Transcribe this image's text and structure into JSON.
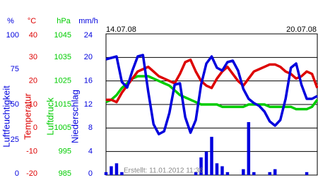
{
  "chart_data": {
    "type": "line",
    "date_start": "14.07.08",
    "date_end": "20.07.08",
    "footer": "Erstellt: 11.01.2012 11:36",
    "grid": true,
    "series": [
      {
        "name": "Luftfeuchtigkeit",
        "unit": "%",
        "type": "line",
        "color": "#0000dd",
        "ylim": [
          0,
          100
        ],
        "yticks": [
          0,
          25,
          50,
          75,
          100
        ],
        "values": [
          82,
          83,
          84,
          66,
          62,
          74,
          84,
          85,
          59,
          36,
          29,
          31,
          44,
          64,
          65,
          41,
          30,
          39,
          64,
          79,
          84,
          76,
          74,
          80,
          81,
          74,
          61,
          54,
          51,
          49,
          45,
          38,
          35,
          39,
          54,
          76,
          79,
          64,
          54,
          54,
          56
        ]
      },
      {
        "name": "Temperatur",
        "unit": "°C",
        "type": "line",
        "color": "#dd0000",
        "ylim": [
          -20,
          40
        ],
        "yticks": [
          -20,
          -10,
          0,
          10,
          20,
          30,
          40
        ],
        "values": [
          12,
          12,
          11,
          15,
          18,
          21,
          24,
          25,
          26,
          24,
          22,
          21,
          20,
          19,
          23,
          28,
          29,
          24,
          20,
          18,
          17,
          21,
          24,
          26,
          23,
          20,
          18,
          21,
          24,
          25,
          26,
          27,
          27,
          26,
          24,
          23,
          21,
          22,
          24,
          23,
          17
        ]
      },
      {
        "name": "Luftdruck",
        "unit": "hPa",
        "type": "line",
        "color": "#00cc00",
        "ylim": [
          985,
          1045
        ],
        "yticks": [
          985,
          995,
          1005,
          1015,
          1025,
          1035,
          1045
        ],
        "values": [
          1016,
          1017,
          1019,
          1022,
          1024,
          1026,
          1027,
          1027,
          1027,
          1026,
          1025,
          1024,
          1023,
          1021,
          1019,
          1018,
          1017,
          1016,
          1015,
          1015,
          1015,
          1015,
          1014,
          1014,
          1014,
          1014,
          1014,
          1015,
          1015,
          1015,
          1015,
          1014,
          1014,
          1014,
          1014,
          1014,
          1013,
          1013,
          1013,
          1014,
          1017
        ]
      },
      {
        "name": "Niederschlag",
        "unit": "mm/h",
        "type": "bar",
        "color": "#0000dd",
        "ylim": [
          0,
          24
        ],
        "yticks": [
          0,
          4,
          8,
          12,
          16,
          20,
          24
        ],
        "values": [
          0.5,
          1.5,
          2,
          0.5,
          0,
          0,
          0,
          0,
          0,
          0,
          0,
          0,
          0,
          0,
          0,
          0,
          0,
          0.5,
          3,
          4,
          6.5,
          2,
          1.5,
          0.5,
          0,
          0,
          1,
          9,
          0.5,
          0,
          0,
          0.5,
          1,
          0,
          0,
          0,
          0,
          0,
          0.5,
          0,
          0
        ]
      }
    ]
  }
}
